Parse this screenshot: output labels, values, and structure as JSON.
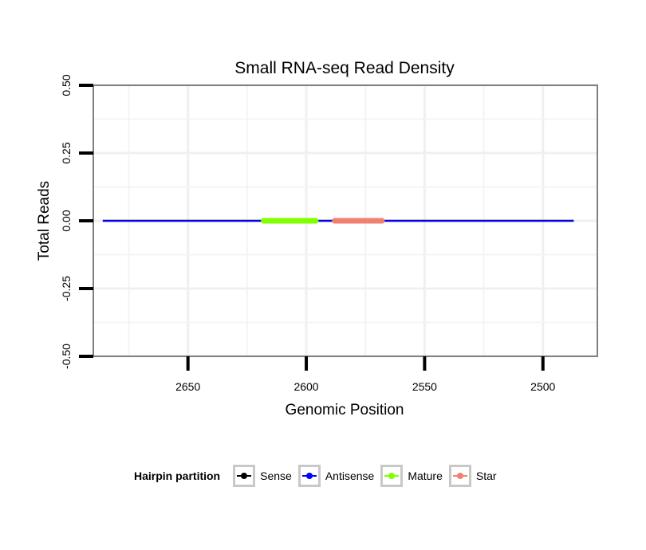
{
  "chart_data": {
    "type": "line",
    "title": "Small RNA-seq Read Density",
    "xlabel": "Genomic Position",
    "ylabel": "Total Reads",
    "xlim": [
      2690,
      2477
    ],
    "ylim": [
      -0.5,
      0.5
    ],
    "x_reversed": true,
    "x_ticks": [
      2650,
      2600,
      2550,
      2500
    ],
    "y_ticks": [
      -0.5,
      -0.25,
      0,
      0.25,
      0.5
    ],
    "x_tick_labels": [
      "2650",
      "2600",
      "2550",
      "2500"
    ],
    "y_tick_labels": [
      "-0.50",
      "-0.25",
      "0.00",
      "0.25",
      "0.50"
    ],
    "x_minor_gridlines": [
      2675,
      2625,
      2575,
      2525
    ],
    "y_minor_gridlines": [
      -0.375,
      -0.125,
      0.125,
      0.375
    ],
    "grid": true,
    "series": [
      {
        "name": "Sense",
        "color": "#000000",
        "x": [
          2686,
          2487
        ],
        "y": [
          0,
          0
        ]
      },
      {
        "name": "Antisense",
        "color": "#0000ff",
        "x": [
          2686,
          2487
        ],
        "y": [
          0,
          0
        ]
      },
      {
        "name": "Mature",
        "color": "#7fff00",
        "x": [
          2618,
          2596
        ],
        "y": [
          0,
          0
        ]
      },
      {
        "name": "Star",
        "color": "#f08070",
        "x": [
          2588,
          2568
        ],
        "y": [
          0,
          0
        ]
      }
    ],
    "legend": {
      "title": "Hairpin partition",
      "placement": "bottom",
      "entries": [
        "Sense",
        "Antisense",
        "Mature",
        "Star"
      ]
    }
  }
}
